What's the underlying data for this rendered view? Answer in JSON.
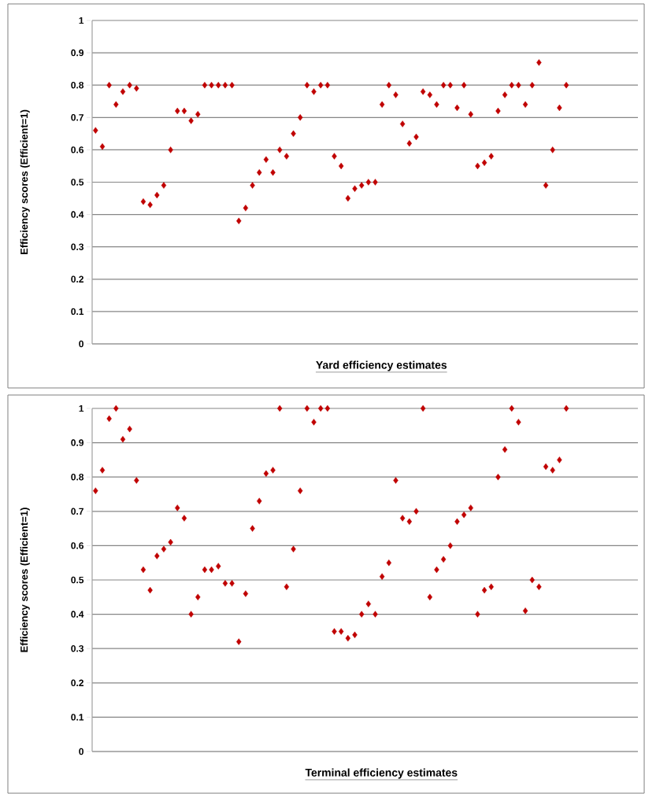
{
  "chart_data": [
    {
      "type": "scatter",
      "xlabel": "Yard efficiency estimates",
      "ylabel": "Efficiency scores (Efficient=1)",
      "categories": [
        null,
        null,
        null,
        null,
        null,
        null,
        null,
        null,
        null,
        null,
        null,
        null,
        null,
        null,
        null,
        null,
        null,
        null,
        null,
        null,
        null,
        null,
        null,
        null,
        null,
        null,
        null,
        null,
        null,
        null,
        null,
        null,
        null,
        null,
        null,
        null,
        null,
        null,
        null,
        null,
        null,
        null,
        null,
        null,
        null,
        null,
        null,
        null,
        null,
        null,
        null,
        null,
        null,
        null,
        null,
        null,
        null,
        null,
        null,
        null,
        null,
        null,
        null,
        null,
        null,
        null,
        null,
        null,
        null,
        null,
        null,
        null,
        null,
        null,
        null,
        null,
        null,
        null,
        null,
        null
      ],
      "values": [
        0.66,
        0.61,
        0.8,
        0.74,
        0.78,
        0.8,
        0.79,
        0.44,
        0.43,
        0.46,
        0.49,
        0.6,
        0.72,
        0.72,
        0.69,
        0.71,
        0.8,
        0.8,
        0.8,
        0.8,
        0.8,
        0.38,
        0.42,
        0.49,
        0.53,
        0.57,
        0.53,
        0.6,
        0.58,
        0.65,
        0.7,
        0.8,
        0.78,
        0.8,
        0.8,
        0.58,
        0.55,
        0.45,
        0.48,
        0.49,
        0.5,
        0.5,
        0.74,
        0.8,
        0.77,
        0.68,
        0.62,
        0.64,
        0.78,
        0.77,
        0.74,
        0.8,
        0.8,
        0.73,
        0.8,
        0.71,
        0.55,
        0.56,
        0.58,
        0.72,
        0.77,
        0.8,
        0.8,
        0.74,
        0.8,
        0.87,
        0.49,
        0.6,
        0.73,
        0.8,
        null,
        null,
        null,
        null,
        null,
        null,
        null,
        null,
        null,
        null
      ],
      "color": "#c00000",
      "marker": "diamond",
      "grid": "y",
      "tick_labels": "y",
      "ylim": [
        0,
        1
      ],
      "yticks": [
        0,
        0.1,
        0.2,
        0.3,
        0.4,
        0.5,
        0.6,
        0.7,
        0.8,
        0.9,
        1
      ]
    },
    {
      "type": "scatter",
      "xlabel": "Terminal efficiency estimates",
      "ylabel": "Efficiency scores (Efficient=1)",
      "categories": [
        null,
        null,
        null,
        null,
        null,
        null,
        null,
        null,
        null,
        null,
        null,
        null,
        null,
        null,
        null,
        null,
        null,
        null,
        null,
        null,
        null,
        null,
        null,
        null,
        null,
        null,
        null,
        null,
        null,
        null,
        null,
        null,
        null,
        null,
        null,
        null,
        null,
        null,
        null,
        null,
        null,
        null,
        null,
        null,
        null,
        null,
        null,
        null,
        null,
        null,
        null,
        null,
        null,
        null,
        null,
        null,
        null,
        null,
        null,
        null,
        null,
        null,
        null,
        null,
        null,
        null,
        null,
        null,
        null,
        null,
        null,
        null,
        null,
        null,
        null,
        null,
        null,
        null,
        null,
        null
      ],
      "values": [
        0.76,
        0.82,
        0.97,
        1.0,
        0.91,
        0.94,
        0.79,
        0.53,
        0.47,
        0.57,
        0.59,
        0.61,
        0.71,
        0.68,
        0.4,
        0.45,
        0.53,
        0.53,
        0.54,
        0.49,
        0.49,
        0.32,
        0.46,
        0.65,
        0.73,
        0.81,
        0.82,
        1.0,
        0.48,
        0.59,
        0.76,
        1.0,
        0.96,
        1.0,
        1.0,
        0.35,
        0.35,
        0.33,
        0.34,
        0.4,
        0.43,
        0.4,
        0.51,
        0.55,
        0.79,
        0.68,
        0.67,
        0.7,
        1.0,
        0.45,
        0.53,
        0.56,
        0.6,
        0.67,
        0.69,
        0.71,
        0.4,
        0.47,
        0.48,
        0.8,
        0.88,
        1.0,
        0.96,
        0.41,
        0.5,
        0.48,
        0.83,
        0.82,
        0.85,
        1.0,
        null,
        null,
        null,
        null,
        null,
        null,
        null,
        null,
        null,
        null
      ],
      "color": "#c00000",
      "marker": "diamond",
      "grid": "y",
      "tick_labels": "y",
      "ylim": [
        0,
        1
      ],
      "yticks": [
        0,
        0.1,
        0.2,
        0.3,
        0.4,
        0.5,
        0.6,
        0.7,
        0.8,
        0.9,
        1
      ]
    }
  ]
}
